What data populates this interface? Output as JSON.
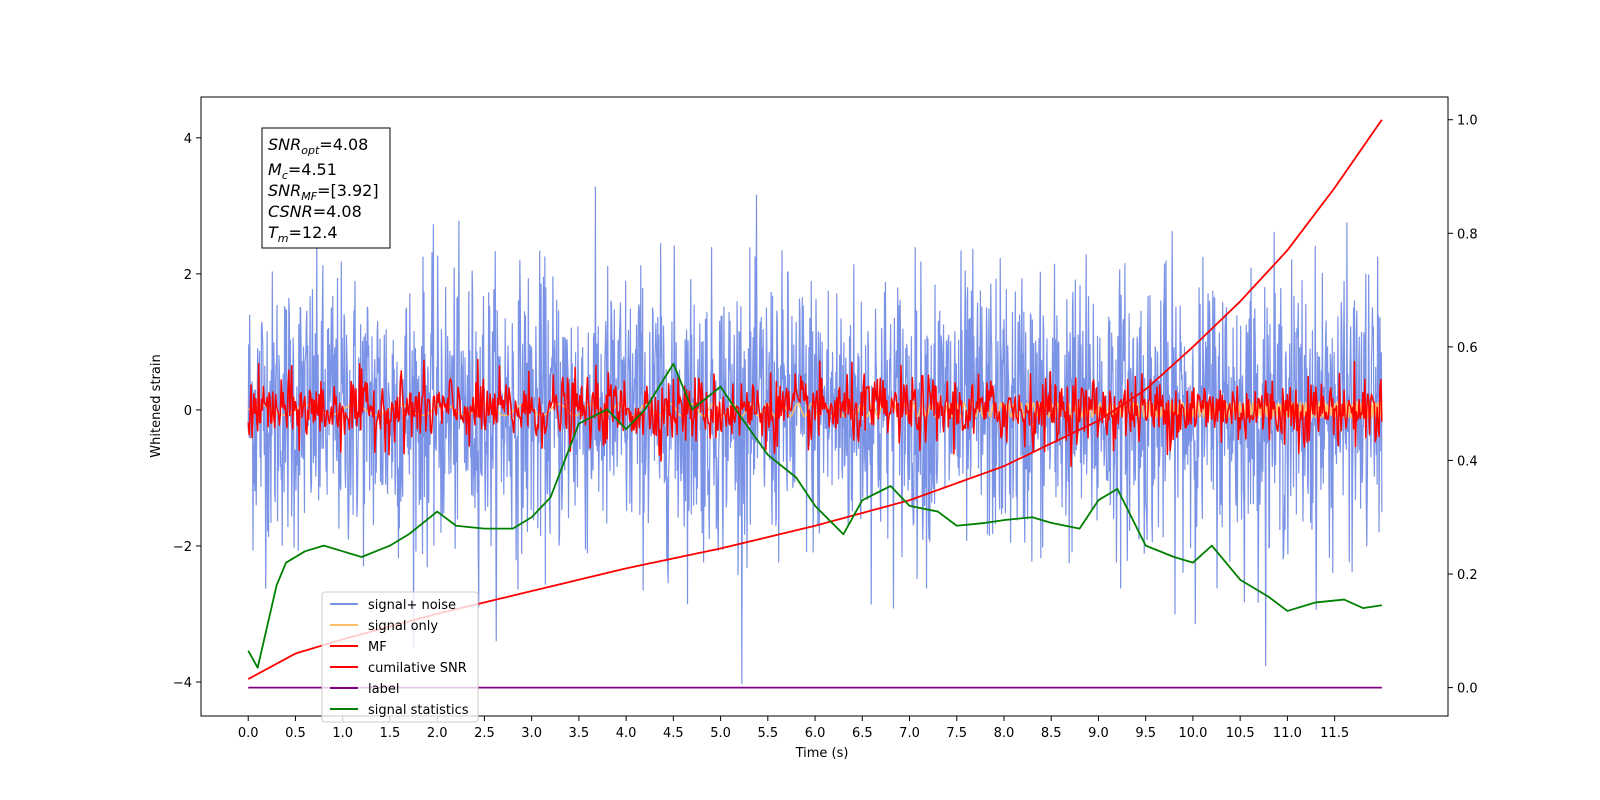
{
  "chart_data": {
    "type": "line",
    "xlabel": "Time (s)",
    "ylabel_left": "Whitened strain",
    "ylabel_right": "",
    "xlim": [
      -0.5,
      12.7
    ],
    "ylim_left": [
      -4.5,
      4.6
    ],
    "ylim_right": [
      -0.05,
      1.04
    ],
    "x_ticks": [
      "0.0",
      "0.5",
      "1.0",
      "1.5",
      "2.0",
      "2.5",
      "3.0",
      "3.5",
      "4.0",
      "4.5",
      "5.0",
      "5.5",
      "6.0",
      "6.5",
      "7.0",
      "7.5",
      "8.0",
      "8.5",
      "9.0",
      "9.5",
      "10.0",
      "10.5",
      "11.0",
      "11.5"
    ],
    "x_tick_values": [
      0,
      0.5,
      1,
      1.5,
      2,
      2.5,
      3,
      3.5,
      4,
      4.5,
      5,
      5.5,
      6,
      6.5,
      7,
      7.5,
      8,
      8.5,
      9,
      9.5,
      10,
      10.5,
      11,
      11.5
    ],
    "y_ticks_left": [
      4,
      2,
      0,
      -2,
      -4
    ],
    "y_ticks_right": [
      1.0,
      0.8,
      0.6,
      0.4,
      0.2,
      0.0
    ],
    "y_ticks_right_labels": [
      "1.0",
      "0.8",
      "0.6",
      "0.4",
      "0.2",
      "0.0"
    ],
    "grid": false,
    "legend_position": "lower-left",
    "x_range": [
      0,
      12
    ],
    "series": [
      {
        "name": "signal+ noise",
        "axis": "left",
        "color": "#7b93e6",
        "kind": "noise",
        "std": 1.0,
        "samples": 2400
      },
      {
        "name": "signal only",
        "axis": "left",
        "color": "#ffbf6b",
        "kind": "chirp",
        "amplitude": 0.12
      },
      {
        "name": "MF",
        "axis": "left",
        "color": "#ff0000",
        "kind": "noise",
        "std": 0.25,
        "samples": 1200
      },
      {
        "name": "cumilative SNR",
        "axis": "right",
        "color": "#ff0000",
        "x": [
          0,
          0.5,
          1,
          2,
          3,
          4,
          5,
          6,
          7,
          8,
          9,
          9.5,
          10,
          10.5,
          11,
          11.5,
          12
        ],
        "y": [
          0.015,
          0.06,
          0.085,
          0.13,
          0.17,
          0.21,
          0.245,
          0.285,
          0.33,
          0.39,
          0.47,
          0.525,
          0.6,
          0.68,
          0.77,
          0.88,
          1.0
        ]
      },
      {
        "name": "label",
        "axis": "right",
        "color": "#800080",
        "x": [
          0,
          12
        ],
        "y": [
          0.0,
          0.0
        ]
      },
      {
        "name": "signal statistics",
        "axis": "right",
        "color": "#008000",
        "x": [
          0,
          0.1,
          0.3,
          0.4,
          0.6,
          0.8,
          1.0,
          1.2,
          1.5,
          1.7,
          2.0,
          2.2,
          2.5,
          2.8,
          3.0,
          3.2,
          3.5,
          3.8,
          4.0,
          4.2,
          4.5,
          4.7,
          5.0,
          5.2,
          5.5,
          5.8,
          6.0,
          6.3,
          6.5,
          6.8,
          7.0,
          7.3,
          7.5,
          7.8,
          8.0,
          8.3,
          8.5,
          8.8,
          9.0,
          9.2,
          9.5,
          9.8,
          10.0,
          10.2,
          10.5,
          10.8,
          11.0,
          11.3,
          11.6,
          11.8,
          12.0
        ],
        "y": [
          0.065,
          0.035,
          0.18,
          0.22,
          0.24,
          0.25,
          0.24,
          0.23,
          0.25,
          0.27,
          0.31,
          0.285,
          0.28,
          0.28,
          0.3,
          0.335,
          0.465,
          0.49,
          0.455,
          0.49,
          0.57,
          0.49,
          0.53,
          0.48,
          0.41,
          0.37,
          0.32,
          0.27,
          0.33,
          0.355,
          0.32,
          0.31,
          0.285,
          0.29,
          0.295,
          0.3,
          0.29,
          0.28,
          0.33,
          0.35,
          0.25,
          0.23,
          0.22,
          0.25,
          0.19,
          0.16,
          0.135,
          0.15,
          0.155,
          0.14,
          0.145
        ]
      }
    ]
  },
  "annotation": {
    "snr_opt_main": "SNR",
    "snr_opt_sub": "opt",
    "snr_opt_val": "=4.08",
    "mc_main": "M",
    "mc_sub": "c",
    "mc_val": "=4.51",
    "snr_mf_main": "SNR",
    "snr_mf_sub": "MF",
    "snr_mf_val": "=[3.92]",
    "csnr_main": "CSNR",
    "csnr_val": "=4.08",
    "tm_main": "T",
    "tm_sub": "m",
    "tm_val": "=12.4"
  }
}
